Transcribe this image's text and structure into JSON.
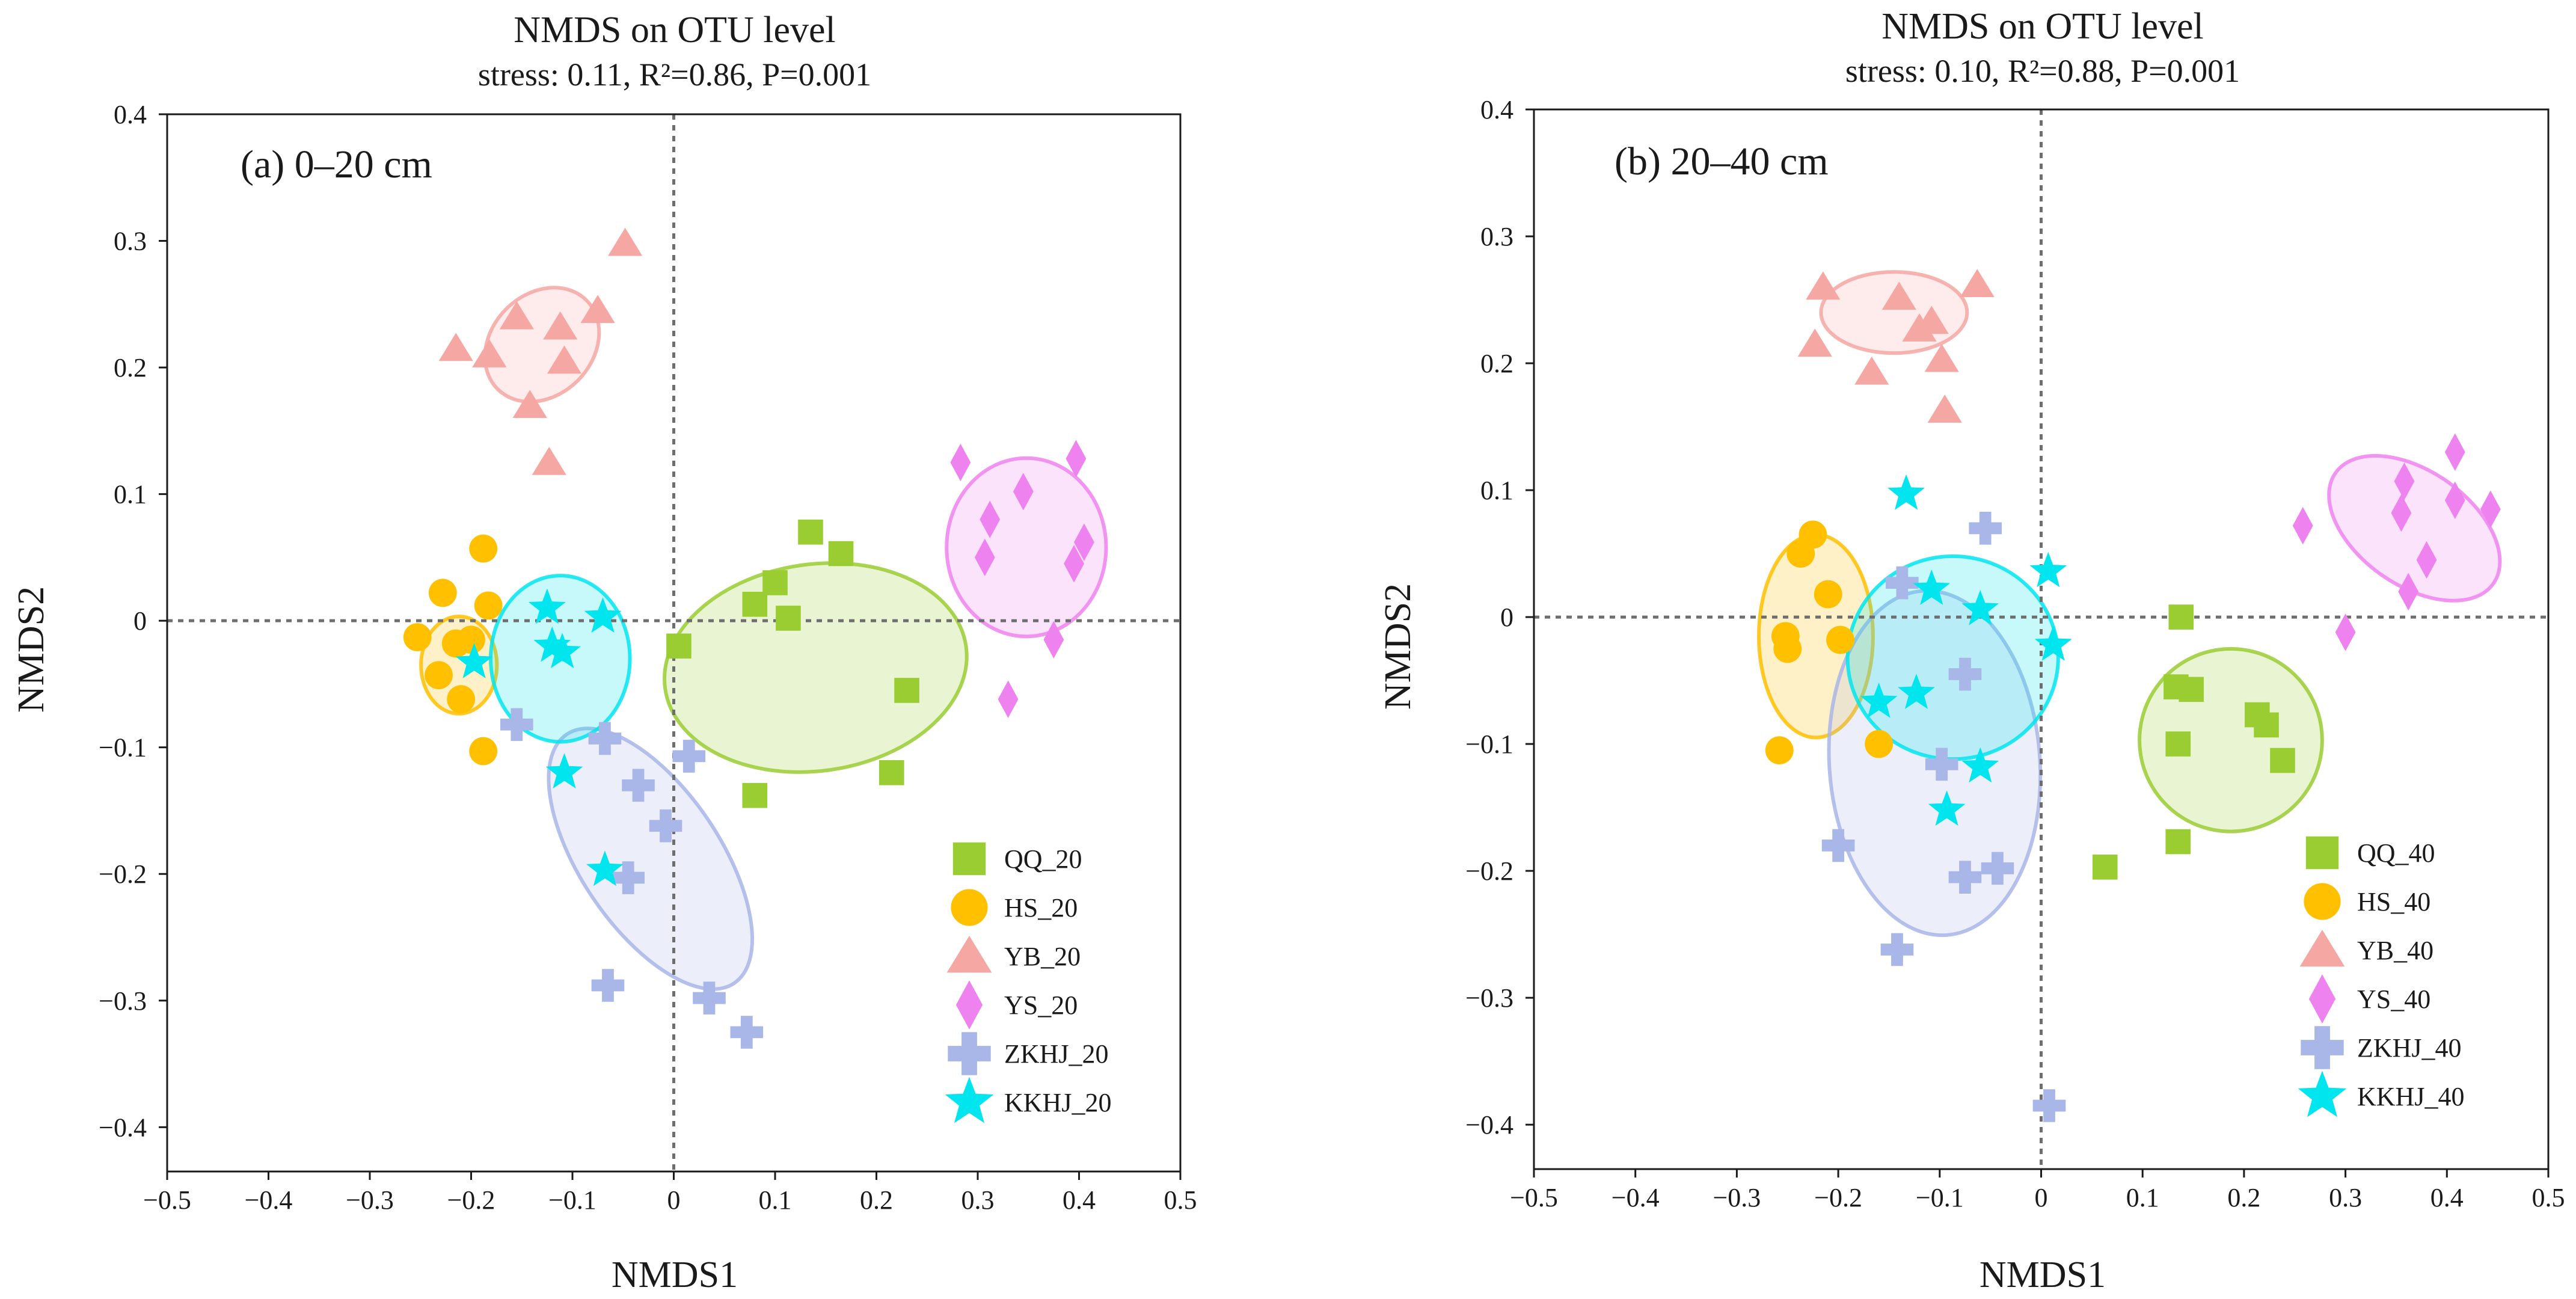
{
  "chart_data": [
    {
      "type": "scatter",
      "title": "NMDS on OTU level",
      "subtitle": "stress: 0.11, R²=0.86, P=0.001",
      "panel_label": "(a) 0–20 cm",
      "xlabel": "NMDS1",
      "ylabel": "NMDS2",
      "xlim": [
        -0.5,
        0.5
      ],
      "ylim": [
        -0.435,
        0.4
      ],
      "xticks": [
        -0.5,
        -0.4,
        -0.3,
        -0.2,
        -0.1,
        0,
        0.1,
        0.2,
        0.3,
        0.4,
        0.5
      ],
      "yticks": [
        -0.4,
        -0.3,
        -0.2,
        -0.1,
        0,
        0.1,
        0.2,
        0.3,
        0.4
      ],
      "xtick_labels": [
        "−0.5",
        "−0.4",
        "−0.3",
        "−0.2",
        "−0.1",
        "0",
        "0.1",
        "0.2",
        "0.3",
        "0.4",
        "0.5"
      ],
      "ytick_labels": [
        "−0.4",
        "−0.3",
        "−0.2",
        "−0.1",
        "0",
        "0.1",
        "0.2",
        "0.3",
        "0.4"
      ],
      "legend_position": "bottom-right",
      "series": [
        {
          "name": "QQ_20",
          "marker": "square",
          "color": "#9ACD32",
          "points": [
            [
              0.005,
              -0.02
            ],
            [
              0.08,
              0.013
            ],
            [
              0.1,
              0.03
            ],
            [
              0.113,
              0.002
            ],
            [
              0.135,
              0.07
            ],
            [
              0.165,
              0.053
            ],
            [
              0.23,
              -0.055
            ],
            [
              0.215,
              -0.12
            ],
            [
              0.08,
              -0.138
            ]
          ],
          "ellipse": {
            "cx": 0.14,
            "cy": -0.037,
            "rx": 0.102,
            "ry": 0.12,
            "angle_deg": -82
          }
        },
        {
          "name": "HS_20",
          "marker": "circle",
          "color": "#FFC000",
          "points": [
            [
              -0.188,
              0.057
            ],
            [
              -0.183,
              0.012
            ],
            [
              -0.228,
              0.022
            ],
            [
              -0.253,
              -0.013
            ],
            [
              -0.2,
              -0.015
            ],
            [
              -0.215,
              -0.018
            ],
            [
              -0.232,
              -0.043
            ],
            [
              -0.21,
              -0.062
            ],
            [
              -0.188,
              -0.103
            ]
          ],
          "ellipse": {
            "cx": -0.212,
            "cy": -0.035,
            "rx": 0.048,
            "ry": 0.03,
            "angle_deg": 90
          }
        },
        {
          "name": "YB_20",
          "marker": "triangle",
          "color": "#F4A7A3",
          "points": [
            [
              -0.048,
              0.298
            ],
            [
              -0.215,
              0.215
            ],
            [
              -0.182,
              0.21
            ],
            [
              -0.155,
              0.24
            ],
            [
              -0.075,
              0.245
            ],
            [
              -0.112,
              0.232
            ],
            [
              -0.108,
              0.205
            ],
            [
              -0.142,
              0.17
            ],
            [
              -0.123,
              0.125
            ]
          ],
          "ellipse": {
            "cx": -0.13,
            "cy": 0.218,
            "rx": 0.062,
            "ry": 0.04,
            "angle_deg": 45
          }
        },
        {
          "name": "YS_20",
          "marker": "diamond",
          "color": "#EE82EE",
          "points": [
            [
              0.283,
              0.125
            ],
            [
              0.397,
              0.128
            ],
            [
              0.345,
              0.102
            ],
            [
              0.312,
              0.08
            ],
            [
              0.405,
              0.062
            ],
            [
              0.307,
              0.05
            ],
            [
              0.395,
              0.045
            ],
            [
              0.375,
              -0.015
            ],
            [
              0.33,
              -0.062
            ]
          ],
          "ellipse": {
            "cx": 0.348,
            "cy": 0.058,
            "rx": 0.088,
            "ry": 0.063,
            "angle_deg": 90
          }
        },
        {
          "name": "ZKHJ_20",
          "marker": "cross",
          "color": "#A9B6E8",
          "points": [
            [
              -0.155,
              -0.082
            ],
            [
              -0.068,
              -0.093
            ],
            [
              0.015,
              -0.107
            ],
            [
              -0.035,
              -0.13
            ],
            [
              -0.008,
              -0.162
            ],
            [
              -0.045,
              -0.203
            ],
            [
              -0.065,
              -0.288
            ],
            [
              0.035,
              -0.298
            ],
            [
              0.072,
              -0.325
            ]
          ],
          "ellipse": {
            "cx": -0.023,
            "cy": -0.188,
            "rx": 0.148,
            "ry": 0.055,
            "angle_deg": -56
          }
        },
        {
          "name": "KKHJ_20",
          "marker": "star",
          "color": "#00E5EE",
          "points": [
            [
              -0.125,
              0.01
            ],
            [
              -0.07,
              0.003
            ],
            [
              -0.12,
              -0.02
            ],
            [
              -0.11,
              -0.025
            ],
            [
              -0.197,
              -0.033
            ],
            [
              -0.108,
              -0.12
            ],
            [
              -0.068,
              -0.197
            ]
          ],
          "ellipse": {
            "cx": -0.112,
            "cy": -0.03,
            "rx": 0.082,
            "ry": 0.055,
            "angle_deg": 90
          }
        }
      ]
    },
    {
      "type": "scatter",
      "title": "NMDS on OTU level",
      "subtitle": "stress: 0.10, R²=0.88, P=0.001",
      "panel_label": "(b) 20–40 cm",
      "xlabel": "NMDS1",
      "ylabel": "NMDS2",
      "xlim": [
        -0.5,
        0.5
      ],
      "ylim": [
        -0.435,
        0.4
      ],
      "xticks": [
        -0.5,
        -0.4,
        -0.3,
        -0.2,
        -0.1,
        0,
        0.1,
        0.2,
        0.3,
        0.4,
        0.5
      ],
      "yticks": [
        -0.4,
        -0.3,
        -0.2,
        -0.1,
        0,
        0.1,
        0.2,
        0.3,
        0.4
      ],
      "xtick_labels": [
        "−0.5",
        "−0.4",
        "−0.3",
        "−0.2",
        "−0.1",
        "0",
        "0.1",
        "0.2",
        "0.3",
        "0.4",
        "0.5"
      ],
      "ytick_labels": [
        "−0.4",
        "−0.3",
        "−0.2",
        "−0.1",
        "0",
        "0.1",
        "0.2",
        "0.3",
        "0.4"
      ],
      "legend_position": "bottom-right",
      "series": [
        {
          "name": "QQ_40",
          "marker": "square",
          "color": "#9ACD32",
          "points": [
            [
              0.138,
              0.0
            ],
            [
              0.133,
              -0.055
            ],
            [
              0.148,
              -0.057
            ],
            [
              0.213,
              -0.077
            ],
            [
              0.222,
              -0.085
            ],
            [
              0.135,
              -0.1
            ],
            [
              0.238,
              -0.113
            ],
            [
              0.135,
              -0.177
            ],
            [
              0.063,
              -0.197
            ]
          ],
          "ellipse": {
            "cx": 0.187,
            "cy": -0.097,
            "rx": 0.09,
            "ry": 0.072,
            "angle_deg": -60
          }
        },
        {
          "name": "HS_40",
          "marker": "circle",
          "color": "#FFC000",
          "points": [
            [
              -0.225,
              0.065
            ],
            [
              -0.237,
              0.05
            ],
            [
              -0.21,
              0.018
            ],
            [
              -0.252,
              -0.015
            ],
            [
              -0.198,
              -0.018
            ],
            [
              -0.25,
              -0.025
            ],
            [
              -0.16,
              -0.1
            ],
            [
              -0.258,
              -0.105
            ]
          ],
          "ellipse": {
            "cx": -0.222,
            "cy": -0.015,
            "rx": 0.1,
            "ry": 0.045,
            "angle_deg": 90
          }
        },
        {
          "name": "YB_40",
          "marker": "triangle",
          "color": "#F4A7A3",
          "points": [
            [
              -0.215,
              0.26
            ],
            [
              -0.14,
              0.252
            ],
            [
              -0.063,
              0.262
            ],
            [
              -0.108,
              0.233
            ],
            [
              -0.12,
              0.227
            ],
            [
              -0.223,
              0.215
            ],
            [
              -0.098,
              0.203
            ],
            [
              -0.167,
              0.193
            ],
            [
              -0.095,
              0.163
            ]
          ],
          "ellipse": {
            "cx": -0.145,
            "cy": 0.24,
            "rx": 0.072,
            "ry": 0.032,
            "angle_deg": 0
          }
        },
        {
          "name": "YS_40",
          "marker": "diamond",
          "color": "#EE82EE",
          "points": [
            [
              0.408,
              0.13
            ],
            [
              0.358,
              0.107
            ],
            [
              0.408,
              0.092
            ],
            [
              0.443,
              0.085
            ],
            [
              0.355,
              0.082
            ],
            [
              0.258,
              0.072
            ],
            [
              0.38,
              0.045
            ],
            [
              0.362,
              0.02
            ],
            [
              0.3,
              -0.012
            ]
          ],
          "ellipse": {
            "cx": 0.368,
            "cy": 0.07,
            "rx": 0.095,
            "ry": 0.045,
            "angle_deg": -35
          }
        },
        {
          "name": "ZKHJ_40",
          "marker": "cross",
          "color": "#A9B6E8",
          "points": [
            [
              -0.055,
              0.07
            ],
            [
              -0.137,
              0.027
            ],
            [
              -0.075,
              -0.045
            ],
            [
              -0.098,
              -0.116
            ],
            [
              -0.2,
              -0.18
            ],
            [
              -0.043,
              -0.198
            ],
            [
              -0.075,
              -0.205
            ],
            [
              -0.142,
              -0.262
            ],
            [
              0.008,
              -0.385
            ]
          ],
          "ellipse": {
            "cx": -0.105,
            "cy": -0.115,
            "rx": 0.17,
            "ry": 0.083,
            "angle_deg": -86
          }
        },
        {
          "name": "KKHJ_40",
          "marker": "star",
          "color": "#00E5EE",
          "points": [
            [
              -0.133,
              0.097
            ],
            [
              0.007,
              0.036
            ],
            [
              -0.108,
              0.022
            ],
            [
              -0.06,
              0.006
            ],
            [
              0.012,
              -0.022
            ],
            [
              -0.16,
              -0.067
            ],
            [
              -0.123,
              -0.06
            ],
            [
              -0.06,
              -0.118
            ],
            [
              -0.093,
              -0.152
            ]
          ],
          "ellipse": {
            "cx": -0.087,
            "cy": -0.032,
            "rx": 0.1,
            "ry": 0.083,
            "angle_deg": 90
          }
        }
      ]
    }
  ]
}
